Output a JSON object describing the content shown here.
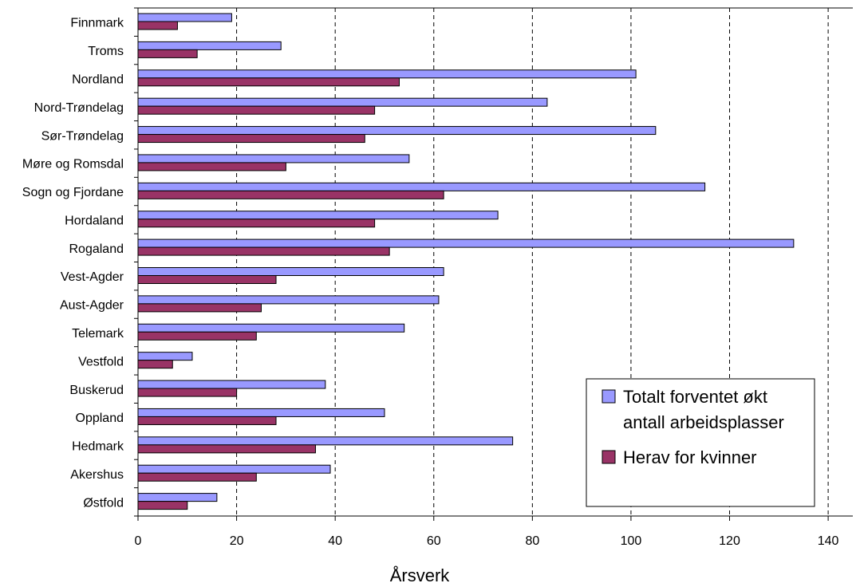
{
  "chart_data": {
    "type": "bar",
    "orientation": "horizontal",
    "categories": [
      "Finnmark",
      "Troms",
      "Nordland",
      "Nord-Trøndelag",
      "Sør-Trøndelag",
      "Møre og Romsdal",
      "Sogn og Fjordane",
      "Hordaland",
      "Rogaland",
      "Vest-Agder",
      "Aust-Agder",
      "Telemark",
      "Vestfold",
      "Buskerud",
      "Oppland",
      "Hedmark",
      "Akershus",
      "Østfold"
    ],
    "series": [
      {
        "name": "Totalt forventet økt antall arbeidsplasser",
        "name_lines": [
          "Totalt forventet økt",
          "antall arbeidsplasser"
        ],
        "color": "#9999ff",
        "values": [
          19,
          29,
          101,
          83,
          105,
          55,
          115,
          73,
          133,
          62,
          61,
          54,
          11,
          38,
          50,
          76,
          39,
          16
        ]
      },
      {
        "name": "Herav for kvinner",
        "name_lines": [
          "Herav for kvinner"
        ],
        "color": "#993366",
        "values": [
          8,
          12,
          53,
          48,
          46,
          30,
          62,
          48,
          51,
          28,
          25,
          24,
          7,
          20,
          28,
          36,
          24,
          10
        ]
      }
    ],
    "xlabel": "Årsverk",
    "ylabel": "",
    "title": "",
    "xlim": [
      0,
      145
    ],
    "xticks": [
      0,
      20,
      40,
      60,
      80,
      100,
      120,
      140
    ],
    "grid": "vertical-dashed",
    "legend_position": "bottom-right"
  }
}
